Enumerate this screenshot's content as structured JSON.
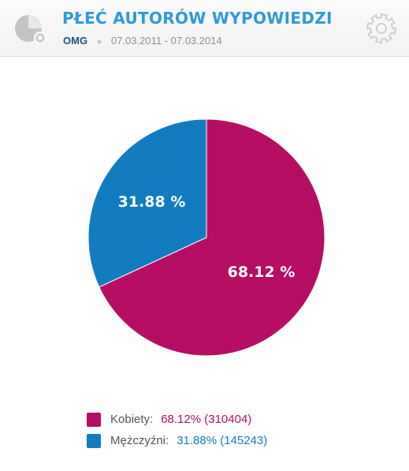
{
  "header": {
    "title": "PŁEĆ AUTORÓW WYPOWIEDZI",
    "source": "OMG",
    "date_range": "07.03.2011 - 07.03.2014",
    "chart_icon": "pie-chart-gear-icon",
    "settings_icon": "gear-icon"
  },
  "colors": {
    "women": "#b60e63",
    "men": "#127cc0",
    "title": "#2f9ad8"
  },
  "chart_data": {
    "type": "pie",
    "series": [
      {
        "name": "Kobiety",
        "percent": 68.12,
        "count": 310404,
        "color": "#b60e63",
        "data_label": "68.12 %"
      },
      {
        "name": "Mężczyźni",
        "percent": 31.88,
        "count": 145243,
        "color": "#127cc0",
        "data_label": "31.88 %"
      }
    ]
  },
  "legend": [
    {
      "label": "Kobiety:",
      "value": "68.12% (310404)",
      "color": "#b60e63"
    },
    {
      "label": "Mężczyźni:",
      "value": "31.88% (145243)",
      "color": "#127cc0"
    }
  ]
}
